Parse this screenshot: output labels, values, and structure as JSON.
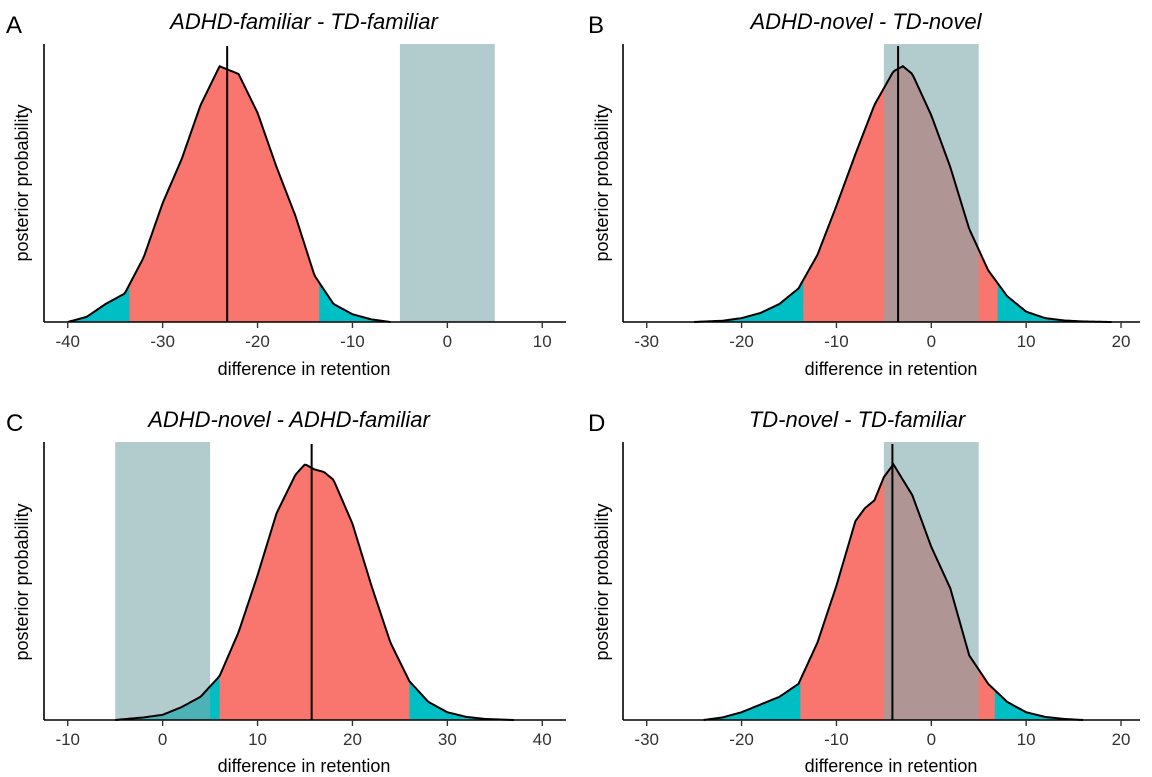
{
  "colors": {
    "credible_interval": "#F8766D",
    "tails": "#00BFC4",
    "rope": "#7FAAAE",
    "rope_opacity": 0.6,
    "line": "#000000"
  },
  "chart_data": [
    {
      "type": "area",
      "letter": "A",
      "title": "ADHD-familiar - TD-familiar",
      "xlabel": "difference in retention",
      "ylabel": "posterior probability",
      "xlim": [
        -42.5,
        12.5
      ],
      "xticks": [
        -40,
        -30,
        -20,
        -10,
        0,
        10
      ],
      "grid": false,
      "rope": [
        -5,
        5
      ],
      "interval": [
        -33.5,
        -13.5
      ],
      "median": -23.2,
      "density": {
        "x": [
          -40,
          -38,
          -36,
          -34,
          -32,
          -30,
          -28,
          -26,
          -24,
          -22,
          -20,
          -18,
          -16,
          -14,
          -12,
          -10,
          -8,
          -6
        ],
        "y": [
          0.0,
          0.02,
          0.07,
          0.11,
          0.25,
          0.46,
          0.63,
          0.84,
          0.99,
          0.96,
          0.81,
          0.6,
          0.41,
          0.18,
          0.07,
          0.03,
          0.01,
          0.0
        ]
      }
    },
    {
      "type": "area",
      "letter": "B",
      "title": "ADHD-novel - TD-novel",
      "xlabel": "difference in retention",
      "ylabel": "posterior probability",
      "xlim": [
        -32.5,
        22
      ],
      "xticks": [
        -30,
        -20,
        -10,
        0,
        10,
        20
      ],
      "grid": false,
      "rope": [
        -5,
        5
      ],
      "interval": [
        -13.5,
        7
      ],
      "median": -3.5,
      "density": {
        "x": [
          -25,
          -22,
          -20,
          -18,
          -16,
          -14,
          -12,
          -10,
          -8,
          -6,
          -4,
          -3,
          -2,
          0,
          2,
          4,
          6,
          8,
          10,
          12,
          14,
          16,
          19
        ],
        "y": [
          0.0,
          0.005,
          0.015,
          0.035,
          0.07,
          0.13,
          0.26,
          0.45,
          0.65,
          0.84,
          0.97,
          0.99,
          0.96,
          0.8,
          0.6,
          0.36,
          0.2,
          0.1,
          0.04,
          0.015,
          0.006,
          0.002,
          0.0
        ]
      }
    },
    {
      "type": "area",
      "letter": "C",
      "title": "ADHD-novel - ADHD-familiar",
      "xlabel": "difference in retention",
      "ylabel": "posterior probability",
      "xlim": [
        -12.5,
        42.5
      ],
      "xticks": [
        -10,
        0,
        10,
        20,
        30,
        40
      ],
      "grid": false,
      "rope": [
        -5,
        5
      ],
      "interval": [
        6,
        26
      ],
      "median": 15.7,
      "density": {
        "x": [
          -5,
          -2,
          0,
          2,
          4,
          6,
          8,
          10,
          12,
          14,
          15,
          16,
          17,
          18,
          20,
          22,
          24,
          26,
          28,
          30,
          32,
          34,
          37
        ],
        "y": [
          0.0,
          0.01,
          0.02,
          0.05,
          0.09,
          0.17,
          0.34,
          0.56,
          0.8,
          0.95,
          0.99,
          0.97,
          0.96,
          0.93,
          0.76,
          0.52,
          0.3,
          0.15,
          0.07,
          0.03,
          0.012,
          0.004,
          0.0
        ]
      }
    },
    {
      "type": "area",
      "letter": "D",
      "title": "TD-novel - TD-familiar",
      "xlabel": "difference in retention",
      "ylabel": "posterior probability",
      "xlim": [
        -32.5,
        22
      ],
      "xticks": [
        -30,
        -20,
        -10,
        0,
        10,
        20
      ],
      "grid": false,
      "rope": [
        -5,
        5
      ],
      "interval": [
        -13.8,
        6.7
      ],
      "median": -4.1,
      "density": {
        "x": [
          -24,
          -22,
          -20,
          -18,
          -16,
          -14,
          -12,
          -10,
          -8,
          -7,
          -6,
          -5,
          -4,
          -2,
          0,
          2,
          4,
          6,
          8,
          10,
          12,
          14,
          16
        ],
        "y": [
          0.0,
          0.01,
          0.03,
          0.06,
          0.09,
          0.14,
          0.3,
          0.52,
          0.77,
          0.82,
          0.85,
          0.94,
          0.99,
          0.87,
          0.67,
          0.51,
          0.25,
          0.14,
          0.07,
          0.03,
          0.012,
          0.004,
          0.0
        ]
      }
    }
  ]
}
